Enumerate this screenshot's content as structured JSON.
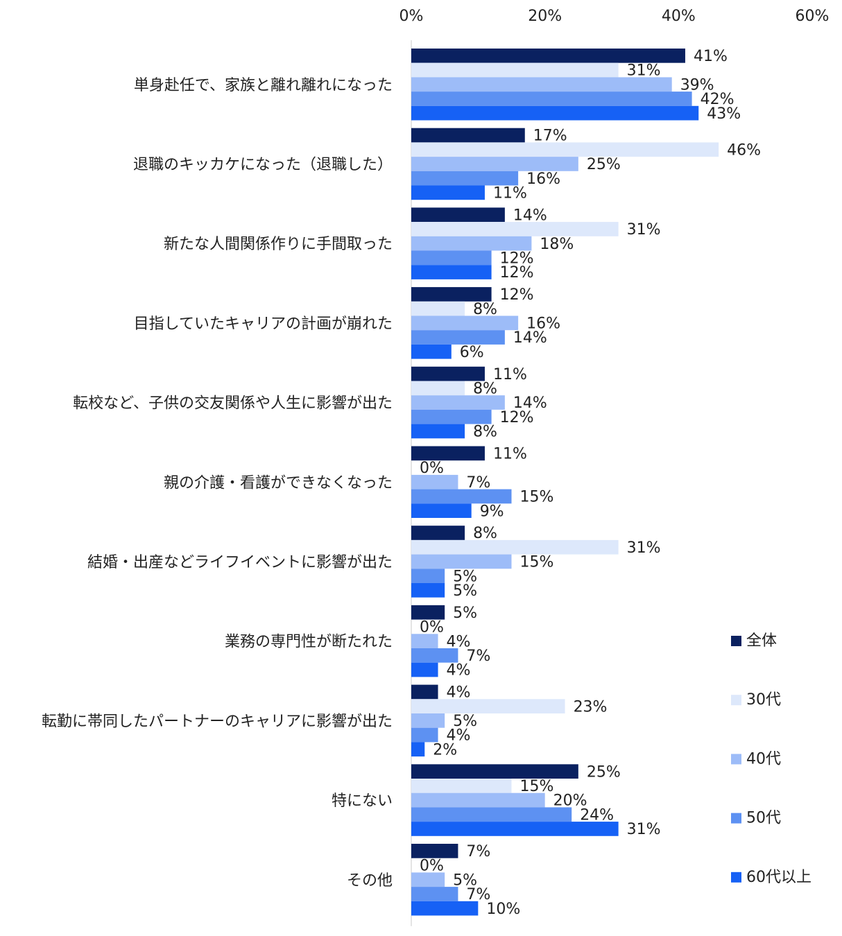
{
  "chart_data": {
    "type": "bar",
    "orientation": "horizontal",
    "xlim": [
      0,
      60
    ],
    "ticks": [
      "0%",
      "20%",
      "40%",
      "60%"
    ],
    "tick_values": [
      0,
      20,
      40,
      60
    ],
    "grid": false,
    "legend_position": "right",
    "categories": [
      "単身赴任で、家族と離れ離れになった",
      "退職のキッカケになった（退職した）",
      "新たな人間関係作りに手間取った",
      "目指していたキャリアの計画が崩れた",
      "転校など、子供の交友関係や人生に影響が出た",
      "親の介護・看護ができなくなった",
      "結婚・出産などライフイベントに影響が出た",
      "業務の専門性が断たれた",
      "転勤に帯同したパートナーのキャリアに影響が出た",
      "特にない",
      "その他"
    ],
    "series": [
      {
        "name": "全体",
        "color": "#0a2160",
        "values": [
          41,
          17,
          14,
          12,
          11,
          11,
          8,
          5,
          4,
          25,
          7
        ]
      },
      {
        "name": "30代",
        "color": "#dde8fb",
        "values": [
          31,
          46,
          31,
          8,
          8,
          0,
          31,
          0,
          23,
          15,
          0
        ]
      },
      {
        "name": "40代",
        "color": "#9dbcf8",
        "values": [
          39,
          25,
          18,
          16,
          14,
          7,
          15,
          4,
          5,
          20,
          5
        ]
      },
      {
        "name": "50代",
        "color": "#5d91f2",
        "values": [
          42,
          16,
          12,
          14,
          12,
          15,
          5,
          7,
          4,
          24,
          7
        ]
      },
      {
        "name": "60代以上",
        "color": "#1661f5",
        "values": [
          43,
          11,
          12,
          6,
          8,
          9,
          5,
          4,
          2,
          31,
          10
        ]
      }
    ],
    "value_suffix": "%"
  }
}
